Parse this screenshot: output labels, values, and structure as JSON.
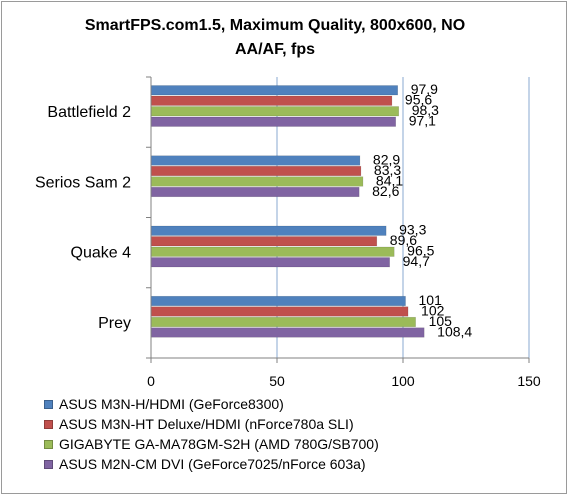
{
  "chart_data": {
    "type": "bar",
    "orientation": "horizontal",
    "title_line1": "SmartFPS.com1.5, Maximum Quality, 800x600, NO",
    "title_line2": "AA/AF, fps",
    "categories": [
      "Battlefield 2",
      "Serios Sam 2",
      "Quake 4",
      "Prey"
    ],
    "series": [
      {
        "name": "ASUS M3N-H/HDMI (GeForce8300)",
        "color": "#4f81bd",
        "values": [
          97.9,
          82.9,
          93.3,
          101
        ],
        "labels": [
          "97,9",
          "82,9",
          "93,3",
          "101"
        ]
      },
      {
        "name": "ASUS M3N-HT Deluxe/HDMI (nForce780a SLI)",
        "color": "#c0504d",
        "values": [
          95.6,
          83.3,
          89.6,
          102
        ],
        "labels": [
          "95,6",
          "83,3",
          "89,6",
          "102"
        ]
      },
      {
        "name": "GIGABYTE GA-MA78GM-S2H (AMD 780G/SB700)",
        "color": "#9bbb59",
        "values": [
          98.3,
          84.1,
          96.5,
          105
        ],
        "labels": [
          "98,3",
          "84,1",
          "96,5",
          "105"
        ]
      },
      {
        "name": "ASUS M2N-CM DVI (GeForce7025/nForce 603a)",
        "color": "#8064a2",
        "values": [
          97.1,
          82.6,
          94.7,
          108.4
        ],
        "labels": [
          "97,1",
          "82,6",
          "94,7",
          "108,4"
        ]
      }
    ],
    "xlim": [
      0,
      150
    ],
    "xticks": [
      "0",
      "50",
      "100",
      "150"
    ],
    "xtick_values": [
      0,
      50,
      100,
      150
    ],
    "grid": "vertical",
    "legend_position": "bottom",
    "colors": {
      "grid": "#88a8d0",
      "axis": "#808080",
      "background": "#ffffff"
    }
  }
}
